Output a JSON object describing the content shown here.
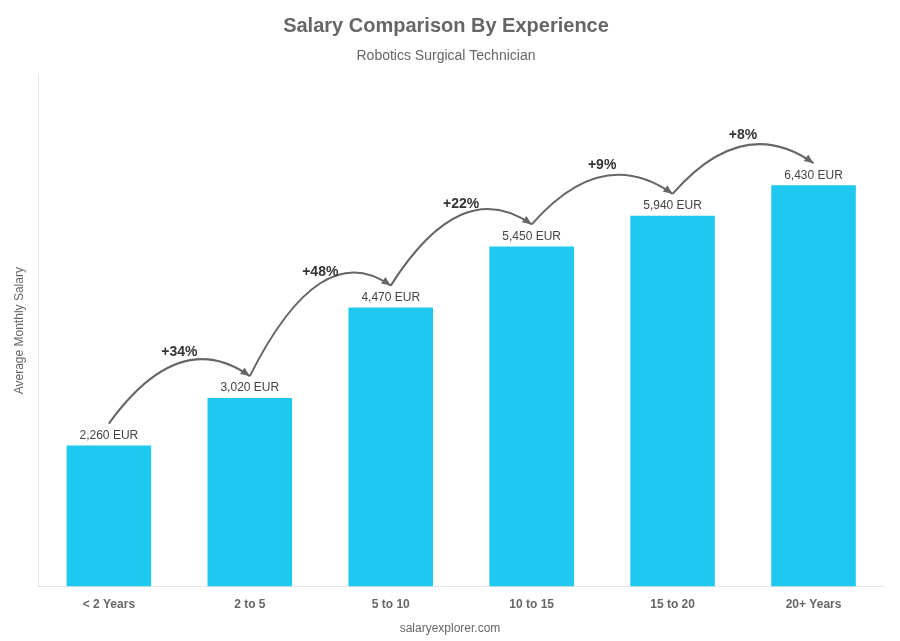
{
  "chart_data": {
    "type": "bar",
    "title": "Salary Comparison By Experience",
    "subtitle": "Robotics Surgical Technician",
    "categories": [
      "< 2 Years",
      "2 to 5",
      "5 to 10",
      "10 to 15",
      "15 to 20",
      "20+ Years"
    ],
    "values": [
      2260,
      3020,
      4470,
      5450,
      5940,
      6430
    ],
    "value_labels": [
      "2,260 EUR",
      "3,020 EUR",
      "4,470 EUR",
      "5,450 EUR",
      "5,940 EUR",
      "6,430 EUR"
    ],
    "data_labels": true,
    "color": "#1ec8ee",
    "annotations": [
      "+34%",
      "+48%",
      "+22%",
      "+9%",
      "+8%"
    ],
    "ylabel": "Average Monthly Salary",
    "watermark": "salaryexplorer.com",
    "ylim": [
      0,
      8200
    ],
    "tick_labels": "x",
    "grid": false
  }
}
